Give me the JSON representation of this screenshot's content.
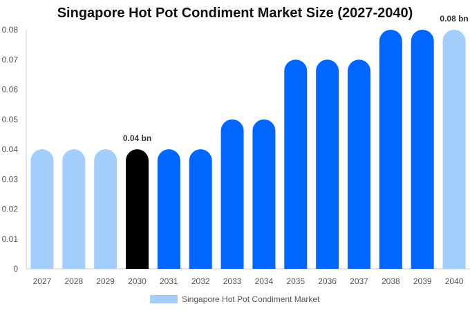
{
  "chart_data": {
    "type": "bar",
    "title": "Singapore Hot Pot Condiment Market Size (2027-2040)",
    "xlabel": "",
    "ylabel": "",
    "categories": [
      "2027",
      "2028",
      "2029",
      "2030",
      "2031",
      "2032",
      "2033",
      "2034",
      "2035",
      "2036",
      "2037",
      "2038",
      "2039",
      "2040"
    ],
    "series": [
      {
        "name": "Singapore Hot Pot Condiment Market",
        "values": [
          0.04,
          0.04,
          0.04,
          0.04,
          0.04,
          0.04,
          0.05,
          0.05,
          0.07,
          0.07,
          0.07,
          0.08,
          0.08,
          0.08
        ]
      }
    ],
    "bar_colors": [
      "#a3cdfb",
      "#a3cdfb",
      "#a3cdfb",
      "#000000",
      "#0066ff",
      "#0066ff",
      "#0066ff",
      "#0066ff",
      "#0066ff",
      "#0066ff",
      "#0066ff",
      "#0066ff",
      "#0066ff",
      "#a3cdfb"
    ],
    "legend_color": "#a3cdfb",
    "ylim": [
      0,
      0.08
    ],
    "yticks": [
      "0",
      "0.01",
      "0.02",
      "0.03",
      "0.04",
      "0.05",
      "0.06",
      "0.07",
      "0.08"
    ],
    "data_labels": [
      {
        "category": "2030",
        "text": "0.04 bn"
      },
      {
        "category": "2040",
        "text": "0.08 bn"
      }
    ],
    "legend_position": "bottom",
    "grid": false
  }
}
